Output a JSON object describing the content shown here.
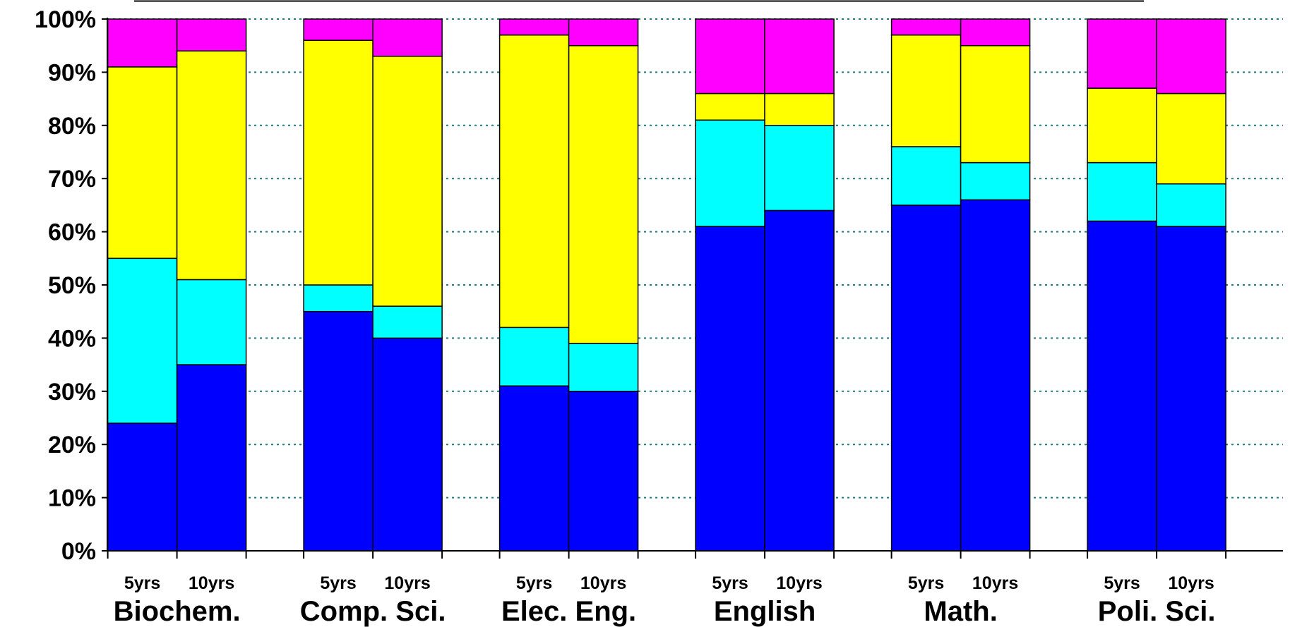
{
  "chart_data": {
    "type": "bar",
    "stacked": true,
    "percent": true,
    "title": "",
    "xlabel": "",
    "ylabel": "",
    "ylim": [
      0,
      100
    ],
    "y_ticks": [
      "0%",
      "10%",
      "20%",
      "30%",
      "40%",
      "50%",
      "60%",
      "70%",
      "80%",
      "90%",
      "100%"
    ],
    "grid": "horizontal dotted",
    "groups": [
      "Biochem.",
      "Comp. Sci.",
      "Elec. Eng.",
      "English",
      "Math.",
      "Poli. Sci."
    ],
    "subcategories": [
      "5yrs",
      "10yrs"
    ],
    "series": [
      {
        "color": "#0000ff",
        "values": [
          [
            24,
            35
          ],
          [
            45,
            40
          ],
          [
            31,
            30
          ],
          [
            61,
            64
          ],
          [
            65,
            66
          ],
          [
            62,
            61
          ]
        ]
      },
      {
        "color": "#00ffff",
        "values": [
          [
            31,
            16
          ],
          [
            5,
            6
          ],
          [
            11,
            9
          ],
          [
            20,
            16
          ],
          [
            11,
            7
          ],
          [
            11,
            8
          ]
        ]
      },
      {
        "color": "#ffff00",
        "values": [
          [
            36,
            43
          ],
          [
            46,
            47
          ],
          [
            55,
            56
          ],
          [
            5,
            6
          ],
          [
            21,
            22
          ],
          [
            14,
            17
          ]
        ]
      },
      {
        "color": "#ff00ff",
        "values": [
          [
            9,
            6
          ],
          [
            4,
            7
          ],
          [
            3,
            5
          ],
          [
            14,
            14
          ],
          [
            3,
            5
          ],
          [
            13,
            14
          ]
        ]
      }
    ]
  }
}
